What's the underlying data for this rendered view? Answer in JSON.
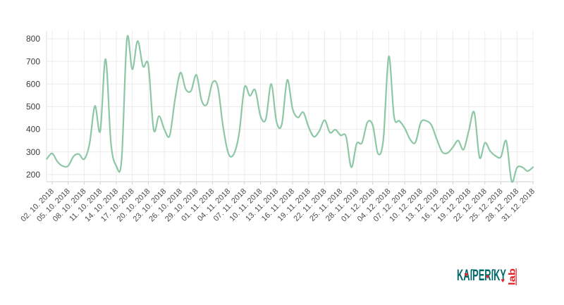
{
  "page": {
    "background": "#ffffff"
  },
  "chart_data": {
    "type": "line",
    "title": "",
    "xlabel": "",
    "ylabel": "",
    "grid": true,
    "legend": "none",
    "line_color": "#8dc7a5",
    "grid_color": "#ececec",
    "axis_color": "#d2d2d2",
    "y_ticks": [
      200,
      300,
      400,
      500,
      600,
      700,
      800
    ],
    "ylim": [
      150,
      830
    ],
    "x_start_date": "01.10.2018",
    "x_end_date": "31.12.2018",
    "x_tick_every_days": 3,
    "x_tick_labels": [
      "02. 10. 2018",
      "05. 10. 2018",
      "08. 10. 2018",
      "11. 10. 2018",
      "14. 10. 2018",
      "17. 10. 2018",
      "20. 10. 2018",
      "23. 10. 2018",
      "26. 10. 2018",
      "29. 10. 2018",
      "01. 11. 2018",
      "04. 11. 2018",
      "07. 11. 2018",
      "10. 11. 2018",
      "13. 11. 2018",
      "16. 11. 2018",
      "19. 11. 2018",
      "22. 11. 2018",
      "25. 11. 2018",
      "28. 11. 2018",
      "01. 12. 2018",
      "04. 12. 2018",
      "07. 12. 2018",
      "10. 12. 2018",
      "13. 12. 2018",
      "16. 12. 2018",
      "19. 12. 2018",
      "22. 12. 2018",
      "25. 12. 2018",
      "28. 12. 2018",
      "31. 12. 2018"
    ],
    "values": [
      269,
      293,
      256,
      237,
      238,
      280,
      290,
      268,
      336,
      503,
      392,
      710,
      340,
      238,
      265,
      800,
      665,
      790,
      678,
      684,
      398,
      458,
      400,
      372,
      533,
      650,
      577,
      570,
      640,
      525,
      512,
      605,
      588,
      410,
      292,
      290,
      382,
      585,
      548,
      573,
      458,
      445,
      600,
      432,
      423,
      618,
      490,
      452,
      475,
      410,
      367,
      392,
      440,
      385,
      398,
      373,
      368,
      232,
      336,
      340,
      430,
      418,
      292,
      357,
      722,
      455,
      437,
      405,
      355,
      342,
      430,
      437,
      418,
      355,
      300,
      295,
      320,
      350,
      310,
      395,
      475,
      275,
      340,
      303,
      282,
      278,
      348,
      170,
      230,
      232,
      215,
      232
    ]
  },
  "logo": {
    "brand": "KASPERSKY",
    "brand_stylized": "KAſPERſKY",
    "sub": "lab",
    "brand_color": "#006a68",
    "accent_color": "#e31e25"
  },
  "axis_text": {
    "y_color": "#3b3b3b",
    "x_color": "#4a4a4a"
  }
}
